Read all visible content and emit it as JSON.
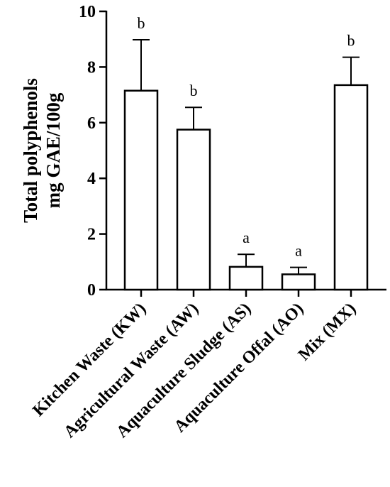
{
  "chart_data": {
    "type": "bar",
    "categories": [
      "Kitchen Waste (KW)",
      "Agricultural Waste (AW)",
      "Aquaculture Sludge (AS)",
      "Aquaculture Offal (AO)",
      "Mix (MX)"
    ],
    "values": [
      7.15,
      5.75,
      0.82,
      0.55,
      7.35
    ],
    "error_upper": [
      8.98,
      6.55,
      1.27,
      0.8,
      8.35
    ],
    "significance_labels": [
      "b",
      "b",
      "a",
      "a",
      "b"
    ],
    "ylabel_lines": [
      "Total polyphenols",
      "mg GAE/100g"
    ],
    "ylim": [
      0,
      10
    ],
    "yticks": [
      0,
      2,
      4,
      6,
      8,
      10
    ],
    "ytick_labels": [
      "0",
      "2",
      "4",
      "6",
      "8",
      "10"
    ],
    "grid": false,
    "legend": "none",
    "colors": {
      "bar_fill": "#ffffff",
      "bar_stroke": "#000000",
      "axis": "#000000"
    }
  }
}
